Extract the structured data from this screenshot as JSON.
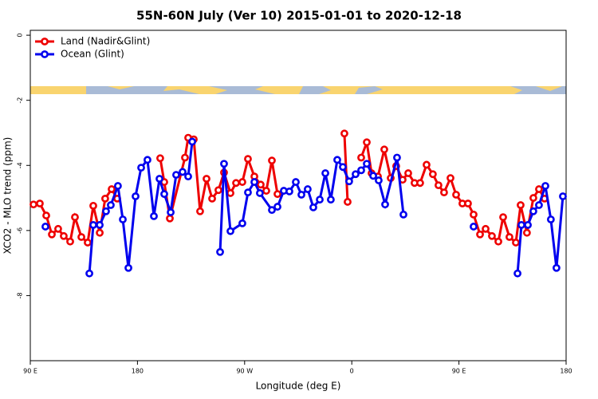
{
  "chart_data": {
    "type": "line",
    "title": "55N-60N July (Ver 10)   2015-01-01 to 2020-12-18",
    "x_label": "Longitude (deg E)",
    "y_label": "XCO2 - MLO trend (ppm)",
    "xlim": [
      90,
      540
    ],
    "ylim": [
      -10,
      0.15
    ],
    "xticks": [
      {
        "value": 90,
        "label": "90 E"
      },
      {
        "value": 180,
        "label": "180"
      },
      {
        "value": 270,
        "label": "90 W"
      },
      {
        "value": 360,
        "label": "0"
      },
      {
        "value": 450,
        "label": "90 E"
      },
      {
        "value": 540,
        "label": "180"
      }
    ],
    "yticks": [
      0,
      -2,
      -4,
      -6,
      -8
    ],
    "legend": "top-left",
    "series": [
      {
        "name": "Land (Nadir&Glint)",
        "color": "#ee0000",
        "x": [
          92.7,
          98.0,
          103.4,
          108.1,
          113.4,
          118.1,
          123.5,
          127.5,
          132.9,
          138.2,
          142.9,
          148.3,
          152.9,
          158.3,
          163.0,
          null,
          199.1,
          202.5,
          207.2,
          219.9,
          222.6,
          227.3,
          232.6,
          238.0,
          242.7,
          248.0,
          252.7,
          258.1,
          262.8,
          268.1,
          272.8,
          278.2,
          283.5,
          288.2,
          292.9,
          297.6,
          null,
          353.8,
          356.5,
          null,
          367.9,
          372.6,
          376.6,
          382.0,
          387.3,
          392.7,
          397.3,
          402.7,
          407.4,
          412.7,
          417.4,
          422.8,
          428.1,
          432.8,
          437.5,
          442.9,
          447.6,
          452.9,
          457.6,
          462.3,
          467.7,
          472.4,
          477.7,
          483.1,
          487.1,
          492.4,
          497.8,
          501.8,
          507.1,
          512.5,
          517.2,
          521.9
        ],
        "values": [
          -5.2,
          -5.17,
          -5.54,
          -6.12,
          -5.95,
          -6.17,
          -6.34,
          -5.59,
          -6.2,
          -6.37,
          -5.24,
          -6.07,
          -5.02,
          -4.73,
          -5.02,
          null,
          -3.78,
          -4.51,
          -5.63,
          -3.76,
          -3.15,
          -3.2,
          -5.41,
          -4.41,
          -5.02,
          -4.76,
          -4.22,
          -4.85,
          -4.54,
          -4.51,
          -3.8,
          -4.34,
          -4.59,
          -4.78,
          -3.85,
          -4.88,
          null,
          -3.02,
          -5.12,
          null,
          -3.76,
          -3.29,
          -4.24,
          -4.34,
          -3.51,
          -4.39,
          -4.02,
          -4.44,
          -4.24,
          -4.54,
          -4.54,
          -3.98,
          -4.27,
          -4.61,
          -4.83,
          -4.39,
          -4.9,
          -5.17,
          -5.17,
          -5.51,
          -6.12,
          -5.95,
          -6.17,
          -6.34,
          -5.59,
          -6.2,
          -6.37,
          -5.22,
          -6.07,
          -5.0,
          -4.73,
          -5.02
        ]
      },
      {
        "name": "Ocean (Glint)",
        "color": "#0000ee",
        "x": [
          102.7,
          null,
          139.6,
          142.9,
          148.3,
          153.6,
          157.6,
          163.6,
          167.7,
          172.4,
          178.4,
          183.1,
          188.4,
          193.8,
          198.5,
          202.5,
          207.9,
          212.5,
          217.9,
          222.6,
          226.0,
          null,
          249.4,
          252.7,
          258.1,
          268.1,
          272.8,
          278.2,
          282.8,
          292.9,
          297.6,
          302.9,
          307.6,
          313.0,
          317.7,
          323.0,
          327.7,
          333.1,
          337.8,
          342.4,
          347.8,
          352.5,
          357.8,
          363.2,
          367.9,
          372.6,
          378.0,
          382.6,
          388.0,
          398.0,
          403.4,
          null,
          462.3,
          null,
          499.2,
          502.5,
          507.9,
          512.5,
          517.2,
          522.6,
          527.2,
          531.9,
          537.3
        ],
        "values": [
          -5.88,
          null,
          -7.32,
          -5.83,
          -5.83,
          -5.41,
          -5.22,
          -4.63,
          -5.66,
          -7.15,
          -4.95,
          -4.07,
          -3.83,
          -5.56,
          -4.41,
          -4.88,
          -5.44,
          -4.29,
          -4.2,
          -4.34,
          -3.27,
          null,
          -6.66,
          -3.95,
          -6.02,
          -5.78,
          -4.83,
          -4.51,
          -4.85,
          -5.37,
          -5.27,
          -4.78,
          -4.8,
          -4.51,
          -4.9,
          -4.73,
          -5.29,
          -5.05,
          -4.24,
          -5.05,
          -3.83,
          -4.05,
          -4.49,
          -4.27,
          -4.15,
          -3.95,
          -4.32,
          -4.46,
          -5.2,
          -3.76,
          -5.51,
          null,
          -5.88,
          null,
          -7.32,
          -5.83,
          -5.83,
          -5.41,
          -5.22,
          -4.63,
          -5.66,
          -7.15,
          -4.95
        ]
      }
    ]
  }
}
